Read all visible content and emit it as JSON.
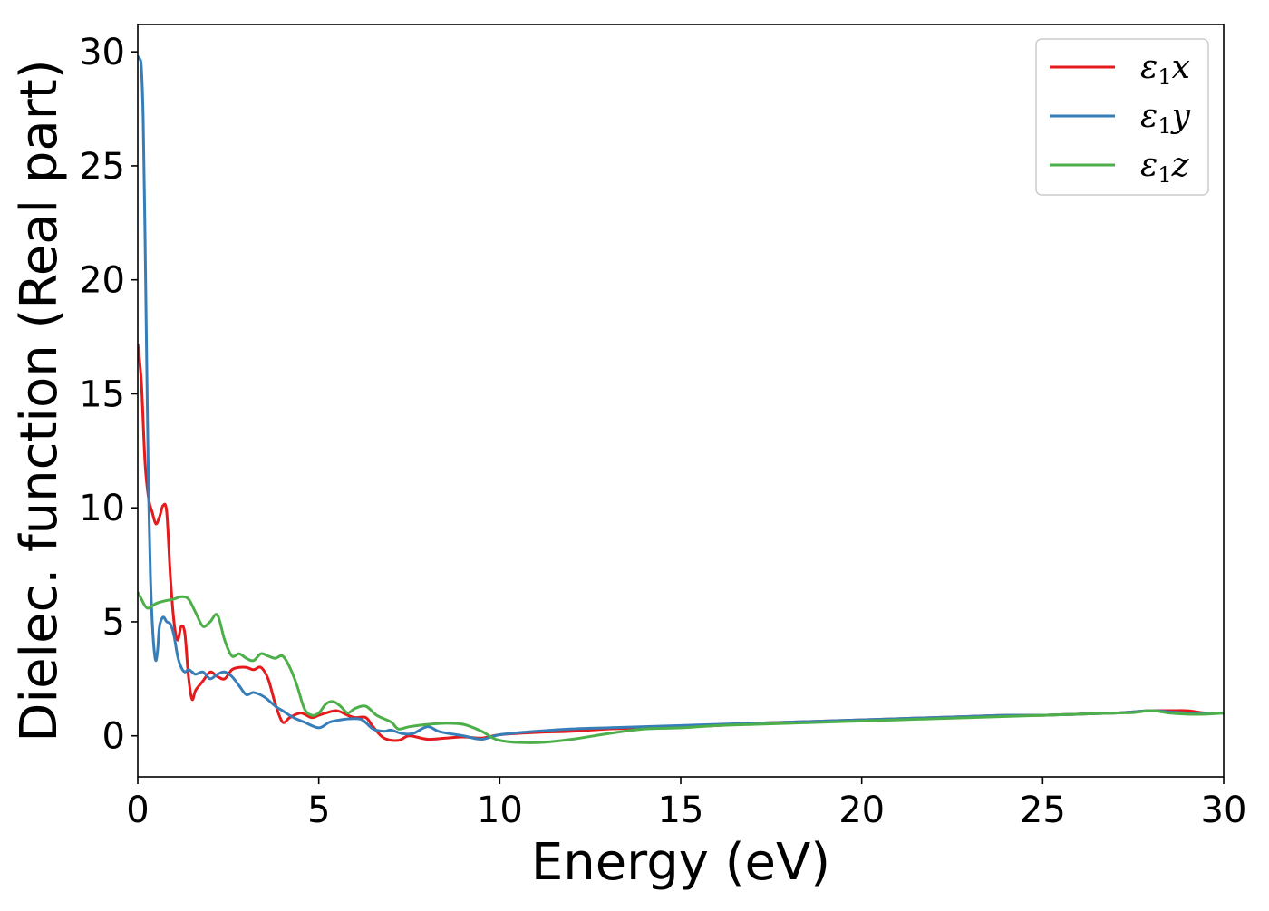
{
  "chart_data": {
    "type": "line",
    "title": "",
    "xlabel": "Energy (eV)",
    "ylabel": "Dielec. function (Real part)",
    "xlim": [
      0,
      30
    ],
    "ylim": [
      -1.8,
      31.2
    ],
    "xticks": [
      0,
      5,
      10,
      15,
      20,
      25,
      30
    ],
    "yticks": [
      0,
      5,
      10,
      15,
      20,
      25,
      30
    ],
    "grid": false,
    "legend_position": "top-right",
    "series": [
      {
        "name": "ε₁x",
        "legend_base": "ε",
        "legend_sub": "1",
        "legend_var": "x",
        "color": "#e41a1c",
        "x": [
          0,
          0.1,
          0.2,
          0.3,
          0.4,
          0.5,
          0.6,
          0.7,
          0.8,
          0.9,
          1.0,
          1.1,
          1.2,
          1.3,
          1.4,
          1.5,
          1.6,
          1.8,
          2.0,
          2.2,
          2.4,
          2.6,
          2.8,
          3.0,
          3.2,
          3.4,
          3.6,
          3.8,
          4.0,
          4.2,
          4.5,
          4.8,
          5.0,
          5.2,
          5.5,
          5.8,
          6.0,
          6.3,
          6.5,
          6.8,
          7.2,
          7.5,
          8.0,
          8.5,
          9.0,
          9.5,
          10,
          11,
          12,
          13,
          14,
          15,
          16,
          17,
          18,
          19,
          20,
          21,
          22,
          23,
          24,
          25,
          26,
          27,
          27.5,
          28,
          28.5,
          29,
          29.5,
          30
        ],
        "y": [
          17.2,
          15.5,
          12.0,
          10.4,
          9.8,
          9.3,
          9.6,
          10.1,
          9.8,
          7.0,
          5.0,
          4.2,
          4.8,
          4.5,
          2.6,
          1.6,
          2.0,
          2.4,
          2.8,
          2.6,
          2.5,
          2.9,
          3.0,
          3.0,
          2.9,
          3.0,
          2.5,
          1.4,
          0.6,
          0.8,
          1.0,
          0.8,
          0.9,
          1.0,
          1.1,
          0.9,
          0.8,
          0.8,
          0.4,
          -0.1,
          -0.2,
          0.0,
          -0.15,
          -0.1,
          -0.05,
          -0.1,
          0.05,
          0.15,
          0.2,
          0.3,
          0.35,
          0.4,
          0.45,
          0.55,
          0.6,
          0.65,
          0.7,
          0.75,
          0.8,
          0.85,
          0.9,
          0.9,
          0.95,
          1.0,
          1.05,
          1.1,
          1.1,
          1.1,
          1.0,
          1.0
        ]
      },
      {
        "name": "ε₁y",
        "legend_base": "ε",
        "legend_sub": "1",
        "legend_var": "y",
        "color": "#377eb8",
        "x": [
          0,
          0.05,
          0.1,
          0.15,
          0.2,
          0.25,
          0.3,
          0.35,
          0.4,
          0.45,
          0.5,
          0.55,
          0.6,
          0.7,
          0.8,
          0.9,
          1.0,
          1.1,
          1.2,
          1.3,
          1.4,
          1.5,
          1.6,
          1.8,
          2.0,
          2.2,
          2.4,
          2.6,
          2.8,
          3.0,
          3.2,
          3.5,
          3.8,
          4.0,
          4.3,
          4.6,
          5.0,
          5.3,
          5.6,
          5.9,
          6.2,
          6.5,
          6.8,
          7.0,
          7.3,
          7.6,
          8.0,
          8.3,
          8.6,
          9.0,
          9.5,
          10,
          11,
          12,
          13,
          14,
          15,
          16,
          17,
          18,
          19,
          20,
          21,
          22,
          23,
          24,
          25,
          26,
          27,
          27.5,
          28,
          28.5,
          29,
          29.5,
          30
        ],
        "y": [
          29.8,
          29.7,
          29.3,
          27.0,
          22.0,
          16.0,
          10.5,
          7.0,
          5.0,
          3.8,
          3.3,
          3.8,
          4.8,
          5.2,
          5.0,
          4.9,
          4.4,
          3.5,
          3.0,
          2.8,
          2.9,
          2.8,
          2.7,
          2.8,
          2.5,
          2.7,
          2.8,
          2.6,
          2.2,
          1.8,
          1.9,
          1.7,
          1.3,
          1.1,
          0.8,
          0.6,
          0.35,
          0.6,
          0.7,
          0.75,
          0.7,
          0.3,
          0.2,
          0.25,
          0.1,
          0.1,
          0.4,
          0.2,
          0.1,
          0.0,
          -0.15,
          0.05,
          0.2,
          0.3,
          0.35,
          0.4,
          0.45,
          0.5,
          0.55,
          0.6,
          0.65,
          0.7,
          0.75,
          0.8,
          0.85,
          0.9,
          0.9,
          0.95,
          1.0,
          1.05,
          1.1,
          1.05,
          1.0,
          1.0,
          1.0
        ]
      },
      {
        "name": "ε₁z",
        "legend_base": "ε",
        "legend_sub": "1",
        "legend_var": "z",
        "color": "#4daf4a",
        "x": [
          0,
          0.1,
          0.2,
          0.3,
          0.5,
          0.7,
          1.0,
          1.2,
          1.4,
          1.6,
          1.8,
          2.0,
          2.2,
          2.4,
          2.6,
          2.8,
          3.0,
          3.2,
          3.4,
          3.6,
          3.8,
          4.0,
          4.2,
          4.4,
          4.6,
          4.8,
          5.0,
          5.2,
          5.4,
          5.6,
          5.8,
          6.0,
          6.3,
          6.6,
          7.0,
          7.2,
          7.5,
          8.0,
          8.5,
          9.0,
          9.5,
          10,
          11,
          12,
          13,
          14,
          15,
          16,
          17,
          18,
          19,
          20,
          21,
          22,
          23,
          24,
          25,
          26,
          27,
          27.5,
          28,
          28.5,
          29,
          29.5,
          30
        ],
        "y": [
          6.3,
          6.0,
          5.7,
          5.6,
          5.8,
          5.9,
          6.0,
          6.1,
          6.0,
          5.4,
          4.8,
          5.0,
          5.3,
          4.2,
          3.5,
          3.6,
          3.4,
          3.3,
          3.6,
          3.5,
          3.4,
          3.5,
          3.0,
          2.2,
          1.2,
          0.9,
          1.0,
          1.4,
          1.5,
          1.3,
          1.0,
          1.2,
          1.3,
          0.9,
          0.6,
          0.3,
          0.4,
          0.5,
          0.55,
          0.5,
          0.2,
          -0.2,
          -0.3,
          -0.15,
          0.1,
          0.3,
          0.35,
          0.45,
          0.5,
          0.55,
          0.6,
          0.65,
          0.7,
          0.75,
          0.8,
          0.85,
          0.9,
          0.95,
          1.0,
          1.02,
          1.1,
          1.0,
          0.95,
          0.95,
          1.0
        ]
      }
    ]
  }
}
